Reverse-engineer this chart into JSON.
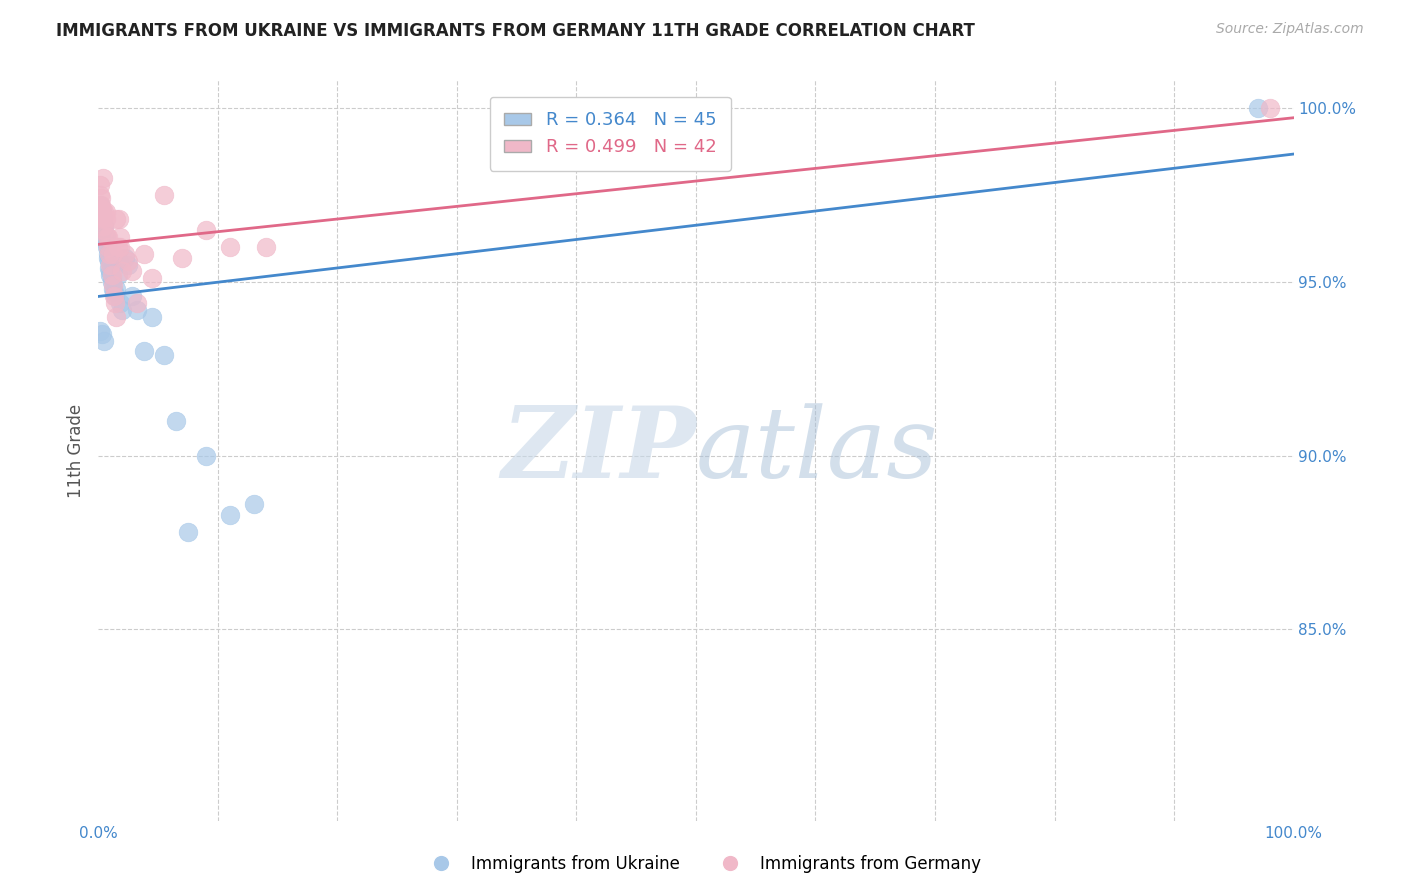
{
  "title": "IMMIGRANTS FROM UKRAINE VS IMMIGRANTS FROM GERMANY 11TH GRADE CORRELATION CHART",
  "source": "Source: ZipAtlas.com",
  "ylabel": "11th Grade",
  "xlim": [
    0.0,
    1.0
  ],
  "ylim": [
    0.795,
    1.008
  ],
  "ytick_labels": [
    "85.0%",
    "90.0%",
    "95.0%",
    "100.0%"
  ],
  "ytick_positions": [
    0.85,
    0.9,
    0.95,
    1.0
  ],
  "R_ukraine": 0.364,
  "N_ukraine": 45,
  "R_germany": 0.499,
  "N_germany": 42,
  "ukraine_color": "#a8c8e8",
  "germany_color": "#f0b8c8",
  "ukraine_line_color": "#4488cc",
  "germany_line_color": "#e06888",
  "ukraine_x": [
    0.001,
    0.002,
    0.003,
    0.003,
    0.004,
    0.004,
    0.005,
    0.005,
    0.006,
    0.006,
    0.007,
    0.007,
    0.008,
    0.008,
    0.009,
    0.009,
    0.01,
    0.01,
    0.011,
    0.011,
    0.012,
    0.013,
    0.014,
    0.015,
    0.016,
    0.017,
    0.018,
    0.02,
    0.022,
    0.025,
    0.028,
    0.032,
    0.038,
    0.045,
    0.055,
    0.065,
    0.075,
    0.09,
    0.11,
    0.13,
    0.001,
    0.003,
    0.005,
    0.5,
    0.97
  ],
  "ukraine_y": [
    0.972,
    0.971,
    0.97,
    0.969,
    0.968,
    0.967,
    0.966,
    0.964,
    0.963,
    0.962,
    0.961,
    0.96,
    0.958,
    0.957,
    0.956,
    0.954,
    0.953,
    0.952,
    0.951,
    0.95,
    0.948,
    0.947,
    0.946,
    0.948,
    0.952,
    0.956,
    0.944,
    0.942,
    0.957,
    0.955,
    0.946,
    0.942,
    0.93,
    0.94,
    0.929,
    0.91,
    0.878,
    0.9,
    0.883,
    0.886,
    0.936,
    0.935,
    0.933,
    0.995,
    1.0
  ],
  "germany_x": [
    0.001,
    0.002,
    0.003,
    0.004,
    0.004,
    0.005,
    0.005,
    0.006,
    0.007,
    0.008,
    0.009,
    0.01,
    0.011,
    0.012,
    0.013,
    0.014,
    0.015,
    0.016,
    0.017,
    0.018,
    0.02,
    0.022,
    0.025,
    0.028,
    0.032,
    0.038,
    0.045,
    0.055,
    0.07,
    0.09,
    0.11,
    0.14,
    0.001,
    0.002,
    0.003,
    0.004,
    0.006,
    0.008,
    0.012,
    0.015,
    0.018,
    0.98
  ],
  "germany_y": [
    0.975,
    0.972,
    0.969,
    0.966,
    0.98,
    0.97,
    0.965,
    0.968,
    0.963,
    0.96,
    0.958,
    0.955,
    0.952,
    0.949,
    0.946,
    0.944,
    0.94,
    0.96,
    0.968,
    0.963,
    0.953,
    0.958,
    0.956,
    0.953,
    0.944,
    0.958,
    0.951,
    0.975,
    0.957,
    0.965,
    0.96,
    0.96,
    0.978,
    0.974,
    0.971,
    0.968,
    0.97,
    0.963,
    0.958,
    0.968,
    0.96,
    1.0
  ],
  "watermark_zip": "ZIP",
  "watermark_atlas": "atlas",
  "background_color": "#ffffff"
}
